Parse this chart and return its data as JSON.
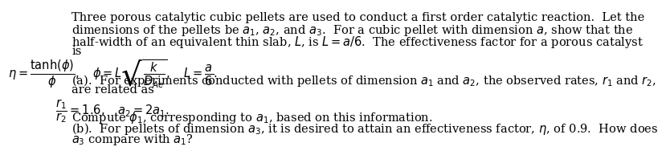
{
  "lines": [
    "Three porous catalytic cubic pellets are used to conduct a first order catalytic reaction.  Let the",
    "dimensions of the pellets be $a_1$, $a_2$, and $a_3$.  For a cubic pellet with dimension $a$, show that the",
    "half-width of an equivalent thin slab, $L$, is $L = a/6$.  The effectiveness factor for a porous catalyst",
    "is"
  ],
  "equation1": "$\\eta = \\dfrac{\\tanh(\\phi)}{\\phi}, \\quad \\phi = L\\sqrt{\\dfrac{k}{D_{Ae}}}, \\quad L = \\dfrac{a}{6}.$",
  "part_a_intro": "(a).  For experiments conducted with pellets of dimension $a_1$ and $a_2$, the observed rates, $r_1$ and $r_2$,",
  "part_a_line2": "are related as",
  "equation2": "$\\dfrac{r_1}{r_2} = 1.6, \\quad a_2 = 2a_1.$",
  "compute_line": "Compute $\\phi_1$, corresponding to $a_1$, based on this information.",
  "part_b": "(b).  For pellets of dimension $a_3$, it is desired to attain an effectiveness factor, $\\eta$, of 0.9.  How does",
  "part_b_line2": "$a_3$ compare with $a_1$?",
  "font_size": 10.5,
  "text_color": "#000000",
  "background_color": "#ffffff"
}
